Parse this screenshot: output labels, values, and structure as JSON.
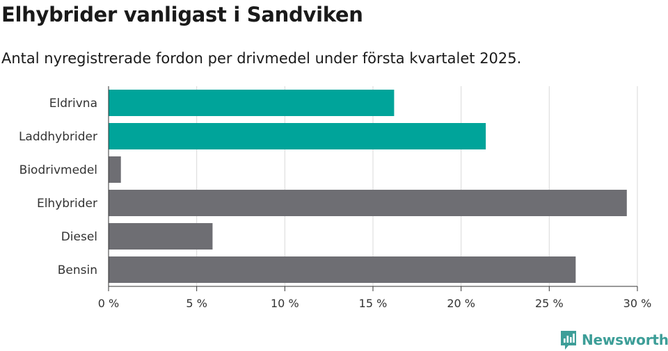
{
  "header": {
    "title": "Elhybrider vanligast i Sandviken",
    "subtitle": "Antal nyregistrerade fordon per drivmedel under första kvartalet 2025."
  },
  "brand": {
    "name": "Newsworthy",
    "icon": "newsworthy-logo-icon",
    "color": "#3d9e98"
  },
  "colors": {
    "highlight": "#00a49a",
    "default": "#6e6e73",
    "grid": "#d9d9d9",
    "axis": "#333333"
  },
  "chart_data": {
    "type": "bar",
    "orientation": "horizontal",
    "categories": [
      "Eldrivna",
      "Laddhybrider",
      "Biodrivmedel",
      "Elhybrider",
      "Diesel",
      "Bensin"
    ],
    "values": [
      16.2,
      21.4,
      0.7,
      29.4,
      5.9,
      26.5
    ],
    "highlighted": [
      true,
      true,
      false,
      false,
      false,
      false
    ],
    "xlim": [
      0,
      30
    ],
    "xticks": [
      0,
      5,
      10,
      15,
      20,
      25,
      30
    ],
    "xtick_labels": [
      "0 %",
      "5 %",
      "10 %",
      "15 %",
      "20 %",
      "25 %",
      "30 %"
    ],
    "grid": true
  }
}
